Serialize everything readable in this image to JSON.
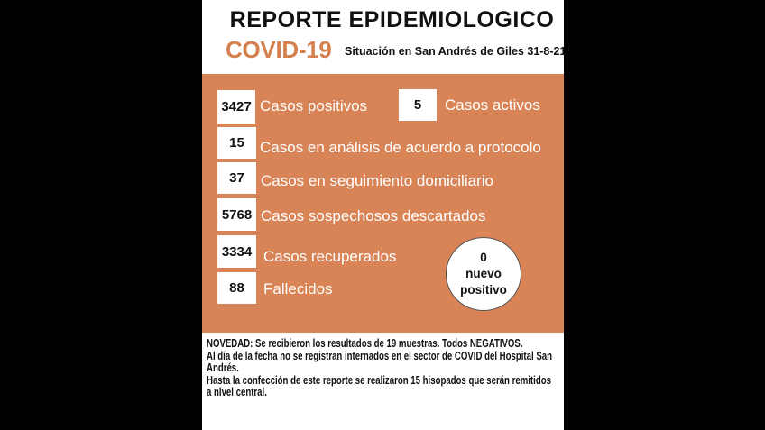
{
  "header": {
    "title": "REPORTE EPIDEMIOLOGICO",
    "covid_label": "COVID-19",
    "subtitle": "Situación en San Andrés de Giles 31-8-21"
  },
  "colors": {
    "accent": "#d98456",
    "covid_text": "#d4804f",
    "background": "#000000"
  },
  "stats": [
    {
      "value": "3427",
      "label": "Casos positivos"
    },
    {
      "value": "5",
      "label": "Casos activos"
    },
    {
      "value": "15",
      "label": "Casos en análisis de acuerdo a protocolo"
    },
    {
      "value": "37",
      "label": "Casos en seguimiento domiciliario"
    },
    {
      "value": "5768",
      "label": "Casos sospechosos descartados"
    },
    {
      "value": "3334",
      "label": "Casos recuperados"
    },
    {
      "value": "88",
      "label": "Fallecidos"
    }
  ],
  "new_positive": {
    "value": "0",
    "line1": "nuevo",
    "line2": "positivo"
  },
  "notes": [
    "NOVEDAD: Se recibieron los resultados  de 19 muestras. Todos NEGATIVOS.",
    "Al día  de la  fecha no se registran internados  en el sector de COVID del Hospital San Andrés.",
    "Hasta la confección de este reporte se realizaron 15 hisopados que serán remitidos a nivel central."
  ]
}
